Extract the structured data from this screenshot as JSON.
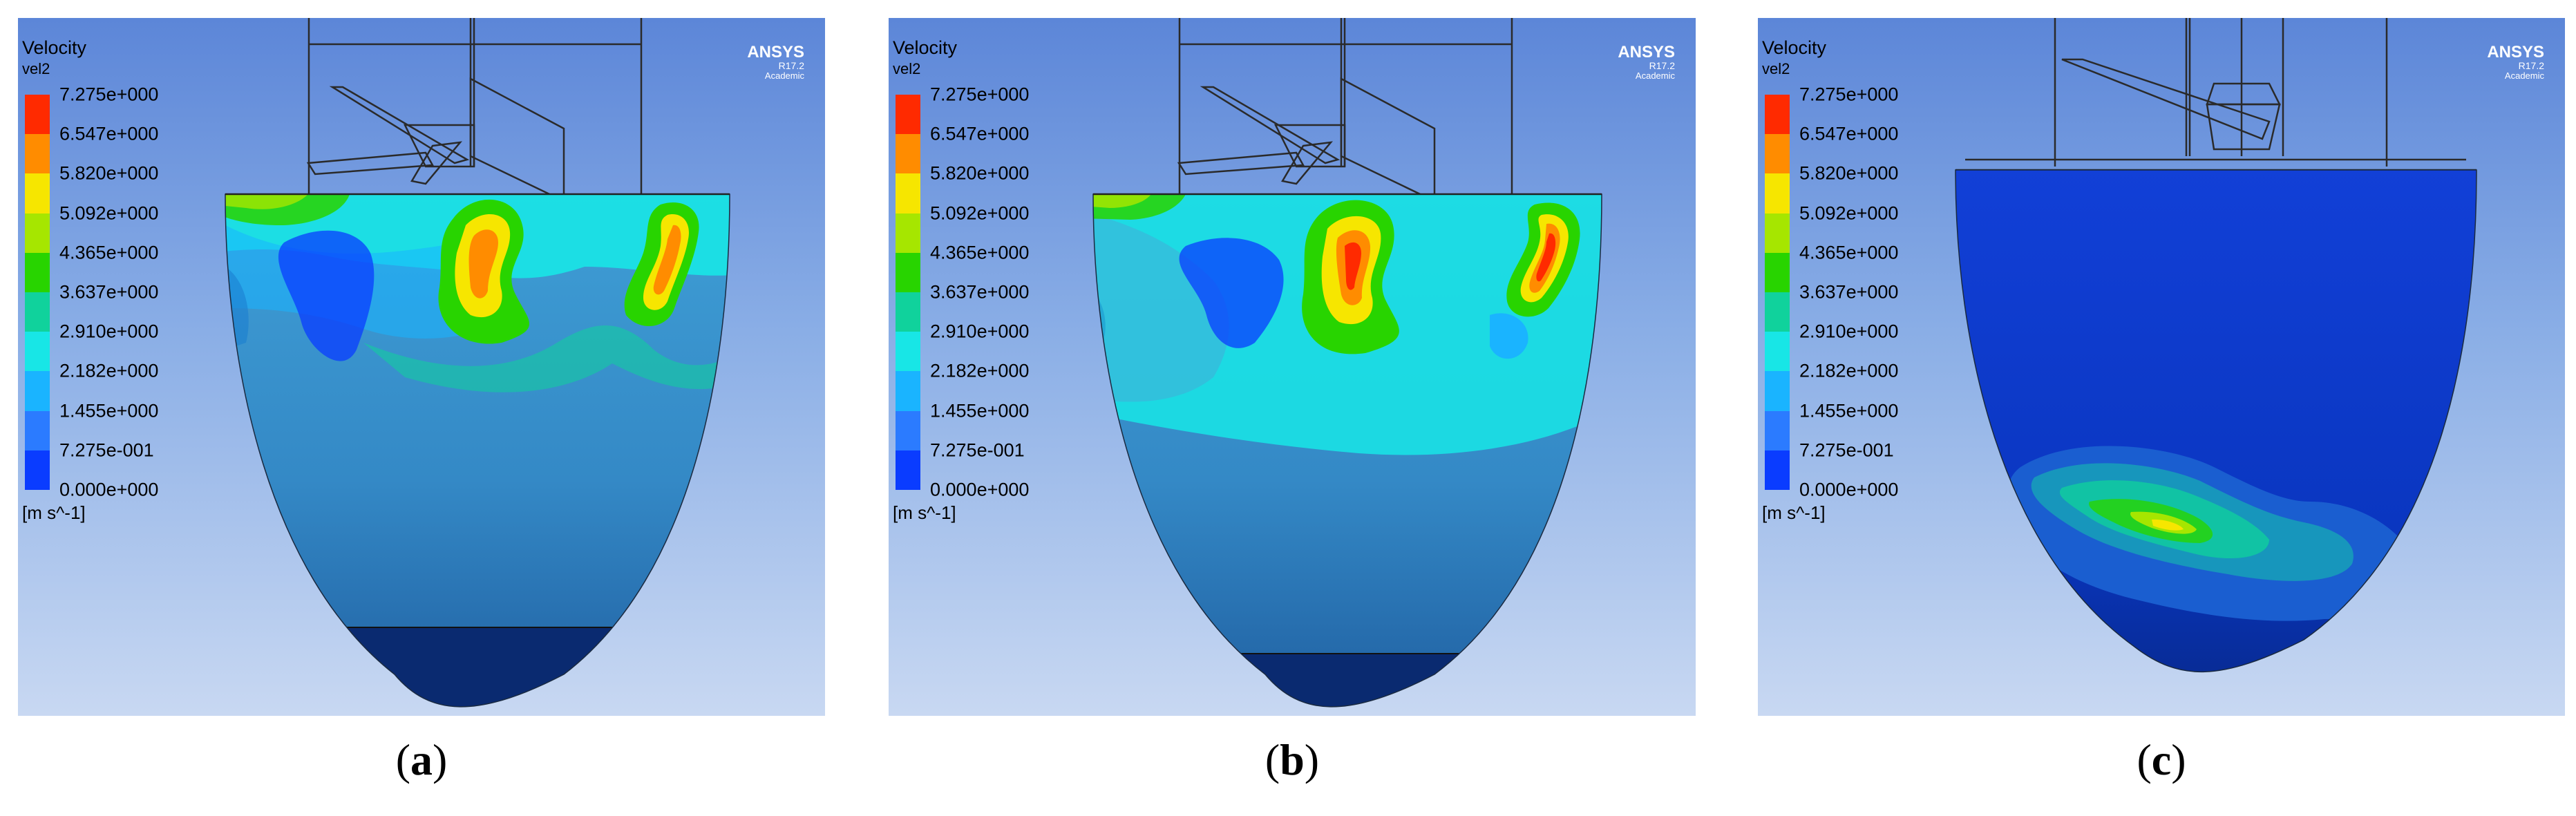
{
  "legend": {
    "title": "Velocity",
    "variable": "vel2",
    "unit": "[m s^-1]",
    "levels": [
      "7.275e+000",
      "6.547e+000",
      "5.820e+000",
      "5.092e+000",
      "4.365e+000",
      "3.637e+000",
      "2.910e+000",
      "2.182e+000",
      "1.455e+000",
      "7.275e-001",
      "0.000e+000"
    ],
    "colors": [
      "#ff2a00",
      "#ff8c00",
      "#f6e600",
      "#a6e600",
      "#28d400",
      "#10d29c",
      "#18e6e6",
      "#1ab4ff",
      "#2b7bff",
      "#0a3cff"
    ]
  },
  "logo": {
    "brand": "ANSYS",
    "version": "R17.2",
    "edition": "Academic"
  },
  "panels": [
    {
      "letter": "a",
      "caption_open": "(",
      "caption_close": ")"
    },
    {
      "letter": "b",
      "caption_open": "(",
      "caption_close": ")"
    },
    {
      "letter": "c",
      "caption_open": "(",
      "caption_close": ")"
    }
  ]
}
